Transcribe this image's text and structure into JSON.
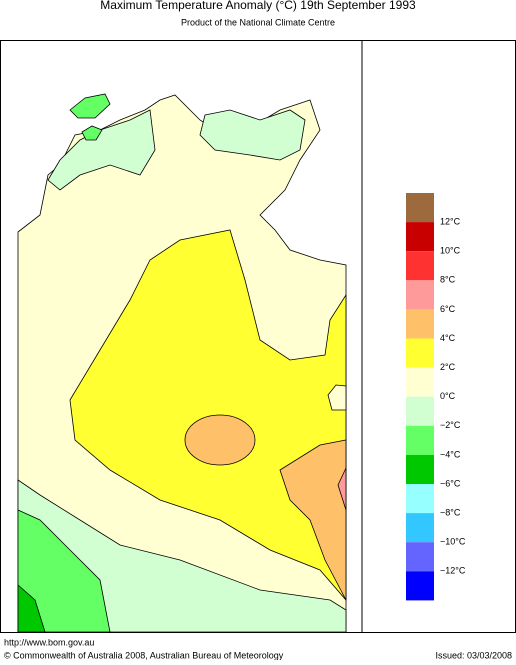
{
  "header": {
    "title": "Maximum Temperature Anomaly (°C)  19th September 1993",
    "subtitle": "Product of the National Climate Centre"
  },
  "legend": {
    "items": [
      {
        "color": "#9c6a3c",
        "label": "12°C"
      },
      {
        "color": "#c80000",
        "label": "10°C"
      },
      {
        "color": "#ff3232",
        "label": "8°C"
      },
      {
        "color": "#ff9a9a",
        "label": "6°C"
      },
      {
        "color": "#ffc06a",
        "label": "4°C"
      },
      {
        "color": "#ffff32",
        "label": "2°C"
      },
      {
        "color": "#ffffd2",
        "label": "0°C"
      },
      {
        "color": "#d2ffd2",
        "label": "−2°C"
      },
      {
        "color": "#64ff64",
        "label": "−4°C"
      },
      {
        "color": "#00c800",
        "label": "−6°C"
      },
      {
        "color": "#96ffff",
        "label": "−8°C"
      },
      {
        "color": "#32c8ff",
        "label": "−10°C"
      },
      {
        "color": "#6464ff",
        "label": "−12°C"
      },
      {
        "color": "#0000ff"
      }
    ]
  },
  "footer": {
    "url": "http://www.bom.gov.au",
    "copyright": "© Commonwealth of Australia 2008, Australian Bureau of Meteorology",
    "issued": "Issued: 03/03/2008"
  }
}
